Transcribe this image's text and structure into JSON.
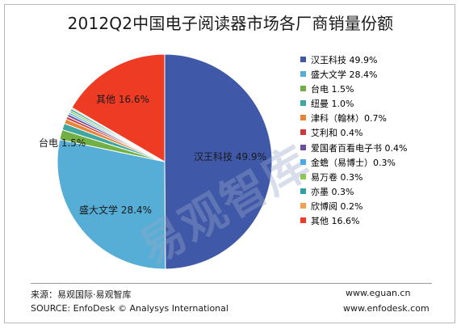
{
  "chart_data": {
    "type": "pie",
    "title": "2012Q2中国电子阅读器市场各厂商销量份额",
    "slices": [
      {
        "name": "汉王科技",
        "value": 49.9,
        "label": "汉王科技 49.9%",
        "color": "#3f58a8"
      },
      {
        "name": "盛大文学",
        "value": 28.4,
        "label": "盛大文学 28.4%",
        "color": "#56aed6"
      },
      {
        "name": "台电",
        "value": 1.5,
        "label": "台电 1.5%",
        "color": "#73b044"
      },
      {
        "name": "纽曼",
        "value": 1.0,
        "label": "纽曼 1.0%",
        "color": "#3ea8a0"
      },
      {
        "name": "津科（翰林）",
        "value": 0.7,
        "label": "津科（翰林）0.7%",
        "color": "#e8833a"
      },
      {
        "name": "艾利和",
        "value": 0.4,
        "label": "艾利和 0.4%",
        "color": "#cc3b3b"
      },
      {
        "name": "爱国者百看电子书",
        "value": 0.4,
        "label": "爱国者百看电子书 0.4%",
        "color": "#6a4fa0"
      },
      {
        "name": "金蟾（易博士）",
        "value": 0.3,
        "label": "金蟾（易博士）0.3%",
        "color": "#4aa8e8"
      },
      {
        "name": "易万卷",
        "value": 0.3,
        "label": "易万卷 0.3%",
        "color": "#8cc84b"
      },
      {
        "name": "亦墨",
        "value": 0.3,
        "label": "亦墨 0.3%",
        "color": "#2fa3a3"
      },
      {
        "name": "欣博阅",
        "value": 0.2,
        "label": "欣博阅 0.2%",
        "color": "#f0a050"
      },
      {
        "name": "其他",
        "value": 16.6,
        "label": "其他 16.6%",
        "color": "#ee3b24"
      }
    ],
    "slice_labels": [
      {
        "name": "汉王科技",
        "text": "汉王科技 49.9%"
      },
      {
        "name": "盛大文学",
        "text": "盛大文学 28.4%"
      },
      {
        "name": "台电",
        "text": "台电 1.5%"
      },
      {
        "name": "其他",
        "text": "其他 16.6%"
      }
    ],
    "legend_placement": "right"
  },
  "footer": {
    "source_cn": "来源：易观国际·易观智库",
    "source_en": "SOURCE: EnfoDesk © Analysys International",
    "url1": "www.eguan.cn",
    "url2": "www.enfodesk.com"
  },
  "watermark": "易观智库"
}
